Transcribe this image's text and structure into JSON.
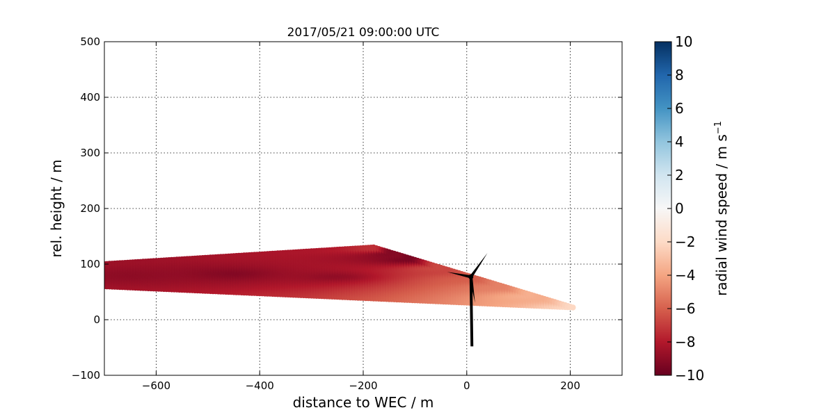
{
  "chart_data": {
    "type": "scatter",
    "title": "2017/05/21 09:00:00 UTC",
    "xlabel": "distance to WEC / m",
    "ylabel": "rel. height / m",
    "xlim": [
      -700,
      300
    ],
    "ylim": [
      -100,
      500
    ],
    "xticks": [
      -600,
      -400,
      -200,
      0,
      200
    ],
    "yticks": [
      -100,
      0,
      100,
      200,
      300,
      400,
      500
    ],
    "xtick_labels": [
      "−600",
      "−400",
      "−200",
      "0",
      "200"
    ],
    "ytick_labels": [
      "−100",
      "0",
      "100",
      "200",
      "300",
      "400",
      "500"
    ],
    "grid": true,
    "scan_region": {
      "outline": [
        [
          -700,
          100
        ],
        [
          -180,
          130
        ],
        [
          205,
          22
        ],
        [
          -700,
          60
        ]
      ],
      "apex": [
        -180,
        130
      ],
      "far_end": [
        205,
        22
      ],
      "values_description_by_point": [
        {
          "x": -650,
          "y": 82,
          "value": -9.0
        },
        {
          "x": -450,
          "y": 85,
          "value": -9.3
        },
        {
          "x": -250,
          "y": 80,
          "value": -9.0
        },
        {
          "x": -180,
          "y": 128,
          "value": -7.0
        },
        {
          "x": -150,
          "y": 121,
          "value": -9.6
        },
        {
          "x": -110,
          "y": 110,
          "value": -9.8
        },
        {
          "x": -60,
          "y": 95,
          "value": -6.5
        },
        {
          "x": 0,
          "y": 75,
          "value": -6.0
        },
        {
          "x": 60,
          "y": 62,
          "value": -5.0
        },
        {
          "x": 120,
          "y": 45,
          "value": -3.5
        },
        {
          "x": 205,
          "y": 22,
          "value": -2.0
        }
      ]
    },
    "wind_turbine": {
      "hub": [
        8,
        77
      ],
      "tower_base": [
        10,
        -48
      ],
      "blade_tips": [
        [
          40,
          120
        ],
        [
          -38,
          86
        ],
        [
          16,
          30
        ]
      ]
    },
    "colorbar": {
      "label": "radial wind speed / m s",
      "label_superscript": "−1",
      "range": [
        -10,
        10
      ],
      "ticks": [
        10,
        8,
        6,
        4,
        2,
        0,
        -2,
        -4,
        -6,
        -8,
        -10
      ],
      "tick_labels": [
        "10",
        "8",
        "6",
        "4",
        "2",
        "0",
        "−2",
        "−4",
        "−6",
        "−8",
        "−10"
      ],
      "colormap": "RdBu",
      "colors": {
        "min": "#67001f",
        "c1": "#b2182b",
        "c2": "#d6604d",
        "c3": "#f4a582",
        "c4": "#fddbc7",
        "mid": "#f7f7f7",
        "c6": "#d1e5f0",
        "c7": "#92c5de",
        "c8": "#4393c3",
        "c9": "#2166ac",
        "max": "#053061"
      }
    }
  }
}
